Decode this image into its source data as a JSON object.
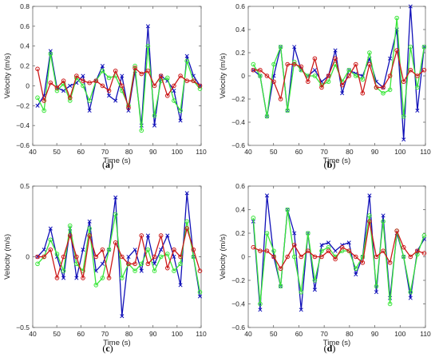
{
  "figure": {
    "panel_labels": [
      "(a)",
      "(b)",
      "(c)",
      "(d)"
    ]
  },
  "colors": {
    "blue": "#1010b8",
    "green": "#39e639",
    "red": "#cc1a1a"
  },
  "chart_data": [
    {
      "type": "line",
      "panel": "(a)",
      "xlabel": "Time (s)",
      "ylabel": "Velocity (m/s)",
      "xlim": [
        40,
        110
      ],
      "ylim": [
        -0.6,
        0.8
      ],
      "xticks": [
        40,
        50,
        60,
        70,
        80,
        90,
        100,
        110
      ],
      "yticks": [
        -0.6,
        -0.4,
        -0.2,
        0,
        0.2,
        0.4,
        0.6,
        0.8
      ],
      "yticklabels": [
        "−0.6",
        "−0.4",
        "−0.2",
        "0",
        "0.2",
        "0.4",
        "0.6",
        "0.8"
      ],
      "x": [
        42,
        44.7,
        47.4,
        50.1,
        52.8,
        55.5,
        58.2,
        60.9,
        63.6,
        66.3,
        69,
        71.7,
        74.4,
        77.1,
        79.8,
        82.5,
        85.2,
        87.9,
        90.6,
        93.3,
        96,
        98.7,
        101.4,
        104.1,
        106.8,
        109.5
      ],
      "series": [
        {
          "color": "blue",
          "marker": "x",
          "values": [
            -0.2,
            -0.1,
            0.35,
            -0.02,
            -0.05,
            0.0,
            0.03,
            0.1,
            -0.25,
            0.05,
            0.2,
            -0.1,
            -0.15,
            0.1,
            -0.25,
            0.15,
            -0.4,
            0.6,
            -0.4,
            0.1,
            0.05,
            -0.05,
            -0.35,
            0.3,
            0.1,
            0.0
          ]
        },
        {
          "color": "green",
          "marker": "o",
          "values": [
            -0.12,
            -0.25,
            0.32,
            -0.05,
            0.02,
            -0.15,
            0.08,
            0.0,
            -0.15,
            0.05,
            0.15,
            0.08,
            0.1,
            -0.05,
            -0.2,
            0.2,
            -0.45,
            0.4,
            -0.3,
            0.05,
            0.08,
            -0.15,
            -0.25,
            0.25,
            0.05,
            -0.03
          ]
        },
        {
          "color": "red",
          "marker": "o",
          "values": [
            0.17,
            -0.15,
            0.03,
            -0.02,
            0.05,
            -0.12,
            0.1,
            0.05,
            0.03,
            0.05,
            0.0,
            -0.05,
            0.15,
            0.0,
            -0.22,
            0.18,
            0.12,
            0.15,
            0.0,
            0.1,
            -0.1,
            0.0,
            0.1,
            0.05,
            0.05,
            0.0
          ]
        }
      ]
    },
    {
      "type": "line",
      "panel": "(b)",
      "xlabel": "Time (s)",
      "ylabel": "Velocity (m/s)",
      "xlim": [
        40,
        110
      ],
      "ylim": [
        -0.6,
        0.6
      ],
      "xticks": [
        40,
        50,
        60,
        70,
        80,
        90,
        100,
        110
      ],
      "yticks": [
        -0.6,
        -0.4,
        -0.2,
        0,
        0.2,
        0.4,
        0.6
      ],
      "yticklabels": [
        "−0.6",
        "−0.4",
        "−0.2",
        "0",
        "0.2",
        "0.4",
        "0.6"
      ],
      "x": [
        42,
        44.7,
        47.4,
        50.1,
        52.8,
        55.5,
        58.2,
        60.9,
        63.6,
        66.3,
        69,
        71.7,
        74.4,
        77.1,
        79.8,
        82.5,
        85.2,
        87.9,
        90.6,
        93.3,
        96,
        98.7,
        101.4,
        104.1,
        106.8,
        109.5
      ],
      "series": [
        {
          "color": "blue",
          "marker": "x",
          "values": [
            0.05,
            0.0,
            -0.35,
            0.0,
            0.25,
            -0.3,
            0.25,
            0.05,
            0.0,
            0.05,
            -0.05,
            0.0,
            0.22,
            -0.15,
            0.05,
            0.02,
            0.0,
            0.15,
            -0.05,
            -0.1,
            0.15,
            0.4,
            -0.55,
            0.6,
            -0.3,
            0.25
          ]
        },
        {
          "color": "green",
          "marker": "o",
          "values": [
            0.1,
            0.0,
            -0.35,
            0.1,
            0.25,
            -0.3,
            0.12,
            0.05,
            0.0,
            0.0,
            -0.08,
            -0.05,
            0.1,
            -0.05,
            0.05,
            0.0,
            -0.03,
            0.2,
            -0.1,
            -0.15,
            -0.12,
            0.5,
            -0.35,
            0.25,
            -0.1,
            0.25
          ]
        },
        {
          "color": "red",
          "marker": "o",
          "values": [
            0.05,
            0.05,
            0.0,
            -0.05,
            -0.2,
            0.1,
            0.1,
            0.08,
            -0.05,
            0.15,
            -0.1,
            0.0,
            0.15,
            -0.08,
            0.0,
            0.1,
            -0.15,
            0.1,
            -0.1,
            -0.1,
            0.0,
            0.22,
            -0.05,
            0.05,
            0.0,
            0.05
          ]
        }
      ]
    },
    {
      "type": "line",
      "panel": "(c)",
      "xlabel": "Time (s)",
      "ylabel": "Velocity (m/s)",
      "xlim": [
        40,
        110
      ],
      "ylim": [
        -0.5,
        0.5
      ],
      "xticks": [
        40,
        50,
        60,
        70,
        80,
        90,
        100,
        110
      ],
      "yticks": [
        -0.5,
        0,
        0.5
      ],
      "yticklabels": [
        "−0.5",
        "0",
        "0.5"
      ],
      "x": [
        42,
        44.7,
        47.4,
        50.1,
        52.8,
        55.5,
        58.2,
        60.9,
        63.6,
        66.3,
        69,
        71.7,
        74.4,
        77.1,
        79.8,
        82.5,
        85.2,
        87.9,
        90.6,
        93.3,
        96,
        98.7,
        101.4,
        104.1,
        106.8,
        109.5
      ],
      "series": [
        {
          "color": "blue",
          "marker": "x",
          "values": [
            0.0,
            0.05,
            0.2,
            0.0,
            -0.15,
            0.2,
            -0.15,
            0.05,
            0.25,
            -0.1,
            -0.05,
            0.05,
            0.42,
            -0.42,
            0.0,
            0.05,
            -0.1,
            0.15,
            -0.05,
            0.05,
            0.15,
            0.0,
            -0.2,
            0.45,
            0.0,
            -0.28
          ]
        },
        {
          "color": "green",
          "marker": "o",
          "values": [
            -0.05,
            0.0,
            0.12,
            0.02,
            -0.1,
            0.22,
            -0.05,
            -0.1,
            0.2,
            -0.2,
            -0.15,
            0.05,
            0.3,
            -0.15,
            -0.05,
            -0.1,
            -0.05,
            0.05,
            -0.1,
            0.0,
            0.02,
            -0.1,
            -0.05,
            0.25,
            0.0,
            -0.25
          ]
        },
        {
          "color": "red",
          "marker": "o",
          "values": [
            0.0,
            0.0,
            0.05,
            -0.15,
            0.0,
            0.15,
            0.0,
            -0.15,
            0.15,
            0.0,
            0.05,
            -0.15,
            0.1,
            0.0,
            -0.05,
            -0.05,
            0.15,
            -0.05,
            0.0,
            0.15,
            -0.08,
            0.05,
            0.0,
            0.2,
            0.05,
            -0.1
          ]
        }
      ]
    },
    {
      "type": "line",
      "panel": "(d)",
      "xlabel": "Time (s)",
      "ylabel": "Velocity (m/s)",
      "xlim": [
        40,
        110
      ],
      "ylim": [
        -0.6,
        0.6
      ],
      "xticks": [
        40,
        50,
        60,
        70,
        80,
        90,
        100,
        110
      ],
      "yticks": [
        -0.6,
        -0.4,
        -0.2,
        0,
        0.2,
        0.4,
        0.6
      ],
      "yticklabels": [
        "−0.6",
        "−0.4",
        "−0.2",
        "0",
        "0.2",
        "0.4",
        "0.6"
      ],
      "x": [
        42,
        44.7,
        47.4,
        50.1,
        52.8,
        55.5,
        58.2,
        60.9,
        63.6,
        66.3,
        69,
        71.7,
        74.4,
        77.1,
        79.8,
        82.5,
        85.2,
        87.9,
        90.6,
        93.3,
        96,
        98.7,
        101.4,
        104.1,
        106.8,
        109.5
      ],
      "series": [
        {
          "color": "blue",
          "marker": "x",
          "values": [
            0.3,
            -0.45,
            0.52,
            0.0,
            -0.25,
            0.4,
            0.2,
            -0.45,
            0.2,
            -0.28,
            0.1,
            0.12,
            0.05,
            0.1,
            0.12,
            -0.15,
            0.0,
            0.52,
            -0.3,
            0.35,
            -0.35,
            0.2,
            0.0,
            -0.35,
            0.05,
            0.15
          ]
        },
        {
          "color": "green",
          "marker": "o",
          "values": [
            0.33,
            -0.4,
            0.2,
            0.05,
            -0.25,
            0.4,
            0.0,
            -0.3,
            0.2,
            -0.2,
            0.05,
            0.08,
            0.0,
            0.05,
            0.05,
            -0.1,
            0.0,
            0.35,
            -0.25,
            0.3,
            -0.4,
            0.22,
            0.0,
            -0.3,
            0.02,
            0.18
          ]
        },
        {
          "color": "red",
          "marker": "o",
          "values": [
            0.08,
            0.05,
            0.05,
            0.0,
            -0.1,
            0.0,
            0.1,
            0.0,
            0.05,
            0.0,
            0.0,
            0.05,
            -0.02,
            0.08,
            0.05,
            0.0,
            -0.05,
            0.3,
            0.0,
            0.05,
            -0.05,
            0.22,
            0.08,
            0.0,
            0.05,
            0.03
          ]
        }
      ]
    }
  ]
}
